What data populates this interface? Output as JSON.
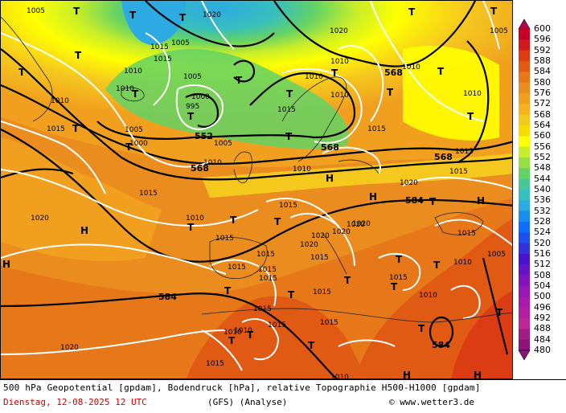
{
  "caption": "500 hPa Geopotential [gpdam], Bodendruck [hPa], relative Topographie H500-H1000 [gpdam]",
  "date": "Dienstag, 12-08-2025  12 UTC",
  "model": "(GFS)  (Analyse)",
  "credit": "© www.wetter3.de",
  "legend": {
    "values": [
      600,
      596,
      592,
      588,
      584,
      580,
      576,
      572,
      568,
      564,
      560,
      556,
      552,
      548,
      544,
      540,
      536,
      532,
      528,
      524,
      520,
      516,
      512,
      508,
      504,
      500,
      496,
      492,
      488,
      484,
      480
    ],
    "colors": [
      "#b40050",
      "#c80028",
      "#d2191e",
      "#dc3c14",
      "#e15a14",
      "#e67819",
      "#eb8c1e",
      "#f0a01e",
      "#f5b41e",
      "#f5c81e",
      "#f8dc00",
      "#ffff00",
      "#c8ee28",
      "#96e141",
      "#64d264",
      "#46c896",
      "#37bebe",
      "#2daae1",
      "#198cf0",
      "#0f6eff",
      "#1e50f0",
      "#3232dc",
      "#4614d2",
      "#6414c8",
      "#8214be",
      "#9619b4",
      "#aa19aa",
      "#b41ea0",
      "#be2896",
      "#a01e82",
      "#8c1478"
    ]
  },
  "geopotential_labels": [
    "552",
    "568",
    "568",
    "568",
    "568",
    "584",
    "584",
    "584"
  ],
  "pressure_labels": [
    "1005",
    "1020",
    "1015",
    "1010",
    "1000",
    "995",
    "1005",
    "1010",
    "1010",
    "1015",
    "1005",
    "1010",
    "1000",
    "1010",
    "1015",
    "1010",
    "1005",
    "1015",
    "1015",
    "1020",
    "1015",
    "1010",
    "1010",
    "1005",
    "1015",
    "1020",
    "1015",
    "1020",
    "1020",
    "1020",
    "1015",
    "1020",
    "1015",
    "1010",
    "1005",
    "1015",
    "1015",
    "1015",
    "1015",
    "1015",
    "1015",
    "1010",
    "1015",
    "1015",
    "1020",
    "1015",
    "1010",
    "1010",
    "1015",
    "1010",
    "1010",
    "1015",
    "1020",
    "1010",
    "1005",
    "1020",
    "1015",
    "1010"
  ],
  "lows": [
    "T",
    "T",
    "T",
    "T",
    "T",
    "T",
    "T",
    "T",
    "T",
    "T",
    "T",
    "T",
    "T",
    "T",
    "T",
    "T",
    "T",
    "T",
    "T",
    "T",
    "T",
    "T",
    "T",
    "T",
    "T",
    "T",
    "T",
    "T",
    "T",
    "T",
    "T",
    "T",
    "T"
  ],
  "highs": [
    "H",
    "H",
    "H",
    "H",
    "H",
    "H",
    "H"
  ]
}
